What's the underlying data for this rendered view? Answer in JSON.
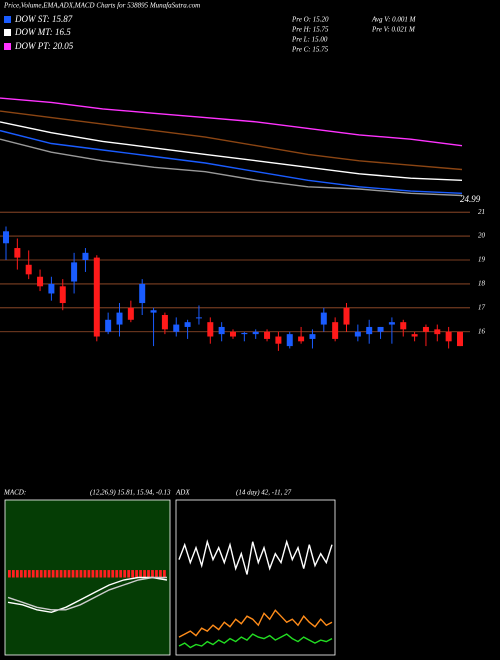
{
  "header": {
    "title": "Price,Volume,EMA,ADX,MACD Charts for 538895 MunafaSutra.com",
    "legend": [
      {
        "label": "DOW ST: 15.87",
        "color": "#1a5cff"
      },
      {
        "label": "DOW MT: 16.5",
        "color": "#ffffff"
      },
      {
        "label": "DOW PT: 20.05",
        "color": "#ff33ff"
      }
    ],
    "info": [
      "Pre  O: 15.20",
      "Pre  H: 15.75",
      "Pre  L: 15.00",
      "Pre  C: 15.75"
    ],
    "info2": [
      "Avg  V: 0.001 M",
      "Pre  V: 0.021 M"
    ]
  },
  "chart_data": [
    {
      "type": "line",
      "ylim": [
        24.99,
        31
      ],
      "yticks": [
        24.99
      ],
      "series": [
        {
          "color": "#ff33ff",
          "values": [
            29.7,
            29.5,
            29.2,
            29.0,
            28.8,
            28.6,
            28.3,
            28.0,
            27.8,
            27.5
          ]
        },
        {
          "color": "#8b4513",
          "values": [
            29.1,
            28.8,
            28.5,
            28.2,
            27.9,
            27.5,
            27.1,
            26.8,
            26.6,
            26.4
          ]
        },
        {
          "color": "#ffffff",
          "values": [
            28.6,
            28.1,
            27.7,
            27.4,
            27.1,
            26.8,
            26.5,
            26.2,
            26.0,
            25.9
          ]
        },
        {
          "color": "#1a5cff",
          "values": [
            28.2,
            27.6,
            27.3,
            27.0,
            26.7,
            26.3,
            25.9,
            25.6,
            25.4,
            25.3
          ]
        },
        {
          "color": "#999999",
          "values": [
            27.8,
            27.2,
            26.8,
            26.5,
            26.3,
            25.9,
            25.6,
            25.5,
            25.3,
            25.2
          ]
        }
      ]
    },
    {
      "type": "candlestick",
      "ylim": [
        9.8,
        21.3
      ],
      "yticks": [
        16,
        17,
        18,
        19,
        20,
        21
      ],
      "grid": true,
      "grid_color": "#a0522d",
      "up_color": "#1a5cff",
      "down_color": "#ff1a1a",
      "open": [
        19.7,
        19.5,
        18.8,
        18.3,
        17.6,
        17.9,
        18.1,
        19.0,
        19.1,
        16.0,
        16.3,
        17.0,
        17.2,
        16.8,
        16.7,
        16.0,
        16.2,
        16.6,
        16.4,
        15.9,
        16.0,
        15.9,
        15.9,
        16.0,
        15.8,
        15.4,
        15.8,
        15.7,
        16.3,
        16.4,
        17.0,
        15.8,
        15.9,
        16.0,
        16.3,
        16.4,
        15.9,
        16.2,
        16.1,
        16.0,
        16.0
      ],
      "high": [
        20.4,
        19.9,
        19.4,
        18.6,
        18.3,
        18.2,
        19.3,
        19.5,
        19.2,
        16.8,
        17.2,
        17.3,
        18.2,
        17.0,
        16.8,
        16.6,
        16.5,
        17.1,
        16.6,
        16.4,
        16.1,
        16.0,
        16.1,
        16.1,
        16.0,
        16.0,
        16.2,
        16.1,
        17.0,
        16.6,
        17.2,
        16.3,
        16.5,
        16.2,
        16.6,
        16.5,
        16.0,
        16.3,
        16.3,
        16.2,
        16.0
      ],
      "low": [
        19.0,
        18.6,
        18.2,
        17.7,
        17.3,
        16.9,
        17.6,
        18.5,
        15.6,
        15.9,
        15.8,
        16.4,
        16.7,
        15.4,
        15.9,
        15.8,
        15.7,
        16.3,
        15.5,
        15.6,
        15.7,
        15.6,
        15.7,
        15.6,
        15.2,
        15.3,
        15.5,
        15.3,
        16.0,
        15.6,
        16.0,
        15.6,
        15.5,
        15.7,
        15.5,
        15.8,
        15.6,
        15.4,
        15.6,
        15.3,
        15.4
      ],
      "close": [
        20.2,
        19.1,
        18.4,
        17.9,
        18.0,
        17.2,
        18.9,
        19.3,
        15.8,
        16.5,
        16.8,
        16.5,
        18.0,
        16.9,
        16.1,
        16.3,
        16.4,
        16.6,
        15.8,
        16.2,
        15.8,
        15.95,
        16.0,
        15.7,
        15.5,
        15.9,
        15.6,
        15.9,
        16.8,
        15.7,
        16.3,
        16.0,
        16.2,
        16.2,
        16.4,
        16.1,
        15.8,
        16.0,
        15.9,
        15.6,
        15.4
      ]
    },
    {
      "type": "macd",
      "title": "MACD:",
      "subtitle": "(12,26,9) 15.81, 15.94, -0.13",
      "ylim": [
        -3,
        3
      ],
      "series": [
        {
          "color": "#ffffff",
          "values": [
            -1.0,
            -1.1,
            -1.3,
            -1.4,
            -1.2,
            -0.9,
            -0.6,
            -0.3,
            -0.1,
            0.0,
            0.0,
            -0.1
          ]
        },
        {
          "color": "#cccccc",
          "values": [
            -0.8,
            -1.0,
            -1.2,
            -1.3,
            -1.3,
            -1.1,
            -0.8,
            -0.5,
            -0.3,
            -0.1,
            0.0,
            0.0
          ]
        }
      ],
      "histogram": [
        0.3,
        0.3,
        0.3,
        0.3,
        0.3,
        0.3,
        0.3,
        0.3,
        0.3,
        0.3,
        0.3,
        0.3,
        0.3,
        0.3,
        0.3,
        0.3,
        0.3,
        0.3,
        0.3,
        0.3,
        0.3,
        0.3,
        0.3,
        0.3,
        0.3,
        0.3,
        0.3,
        0.3,
        0.3,
        0.3,
        0.3,
        0.3,
        0.3,
        0.3,
        0.3,
        0.3,
        0.3,
        0.3,
        0.3,
        0.3
      ],
      "histogram_color": "#ff2020"
    },
    {
      "type": "adx",
      "title": "ADX",
      "subtitle": "(14 day) 42, -11, 27",
      "ylim": [
        0,
        100
      ],
      "series": [
        {
          "color": "#ffffff",
          "values": [
            62,
            72,
            60,
            70,
            58,
            74,
            62,
            70,
            60,
            72,
            56,
            66,
            52,
            74,
            60,
            70,
            56,
            66,
            60,
            74,
            62,
            70,
            56,
            72,
            58,
            66,
            60,
            72
          ]
        },
        {
          "color": "#ff8c1a",
          "values": [
            10,
            12,
            14,
            11,
            16,
            14,
            18,
            15,
            20,
            17,
            22,
            19,
            24,
            22,
            18,
            26,
            22,
            28,
            24,
            20,
            22,
            18,
            24,
            20,
            17,
            22,
            18,
            20
          ]
        },
        {
          "color": "#22dd22",
          "values": [
            4,
            6,
            3,
            5,
            4,
            7,
            5,
            8,
            6,
            9,
            7,
            10,
            8,
            12,
            10,
            9,
            11,
            8,
            10,
            12,
            9,
            7,
            10,
            8,
            6,
            8,
            7,
            9
          ]
        }
      ]
    }
  ]
}
